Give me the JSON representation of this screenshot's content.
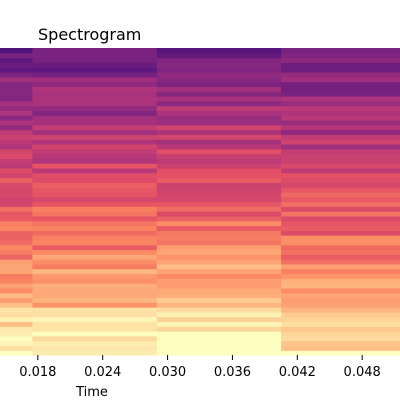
{
  "chart_data": {
    "type": "heatmap",
    "title": "Spectrogram",
    "xlabel": "Time",
    "ylabel": "",
    "colormap": "magma",
    "xlim": [
      0.0145,
      0.0515
    ],
    "xticks": [
      0.018,
      0.024,
      0.03,
      0.036,
      0.042,
      0.048
    ],
    "xtick_labels": [
      "0.018",
      "0.024",
      "0.030",
      "0.036",
      "0.042",
      "0.048"
    ],
    "time_segments": [
      {
        "start": 0.0145,
        "end": 0.0175
      },
      {
        "start": 0.0175,
        "end": 0.029
      },
      {
        "start": 0.029,
        "end": 0.0405
      },
      {
        "start": 0.0405,
        "end": 0.0515
      }
    ],
    "frequency_bins": 64,
    "legend": "none",
    "grid": false
  }
}
